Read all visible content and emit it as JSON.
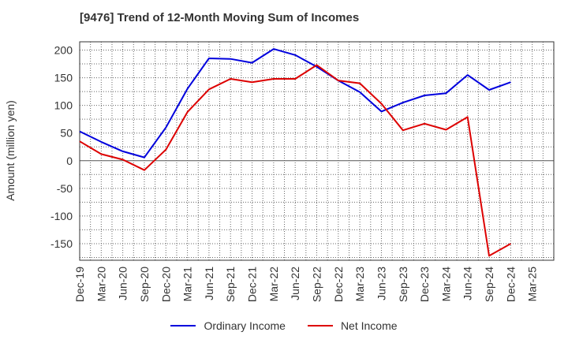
{
  "chart_data": {
    "type": "line",
    "title": "[9476]  Trend of 12-Month Moving Sum of Incomes",
    "ylabel": "Amount (million yen)",
    "xlabel": "",
    "ylim": [
      -180,
      215
    ],
    "yticks": [
      200,
      150,
      100,
      50,
      0,
      -50,
      -100,
      -150
    ],
    "grid": true,
    "legend_position": "bottom",
    "categories": [
      "Dec-19",
      "Mar-20",
      "Jun-20",
      "Sep-20",
      "Dec-20",
      "Mar-21",
      "Jun-21",
      "Sep-21",
      "Dec-21",
      "Mar-22",
      "Jun-22",
      "Sep-22",
      "Dec-22",
      "Mar-23",
      "Jun-23",
      "Sep-23",
      "Dec-23",
      "Mar-24",
      "Jun-24",
      "Sep-24",
      "Dec-24",
      "Mar-25"
    ],
    "series": [
      {
        "name": "Ordinary Income",
        "color": "#0000dd",
        "values": [
          53,
          34,
          17,
          6,
          60,
          130,
          185,
          184,
          177,
          202,
          191,
          170,
          145,
          124,
          89,
          105,
          118,
          122,
          155,
          128,
          142,
          null
        ]
      },
      {
        "name": "Net Income",
        "color": "#dd0000",
        "values": [
          35,
          12,
          2,
          -17,
          20,
          88,
          129,
          148,
          142,
          148,
          148,
          173,
          145,
          140,
          103,
          55,
          67,
          56,
          79,
          -172,
          -150,
          null
        ]
      }
    ]
  }
}
